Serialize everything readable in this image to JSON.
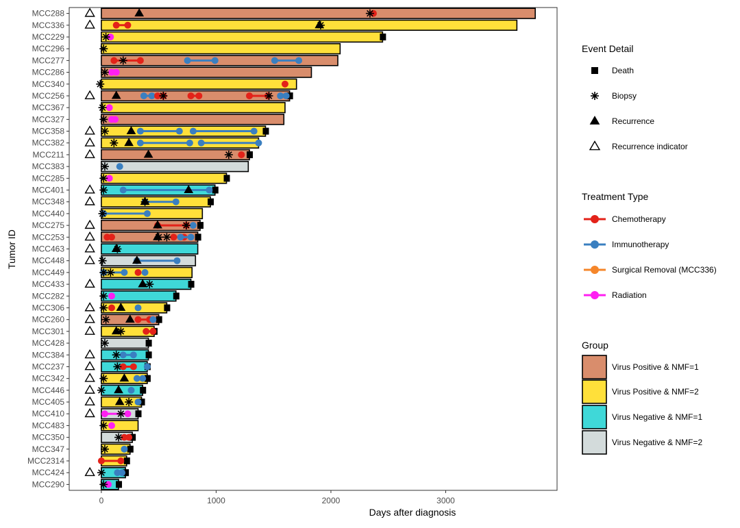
{
  "chart_data": {
    "type": "swimmer",
    "xlabel": "Days after diagnosis",
    "ylabel": "Tumor ID",
    "xlim": [
      -280,
      3970
    ],
    "xticks": [
      0,
      1000,
      2000,
      3000
    ],
    "grid": false,
    "legend_position": "right",
    "legends": {
      "event": {
        "title": "Event Detail",
        "items": [
          {
            "key": "death",
            "label": "Death"
          },
          {
            "key": "biopsy",
            "label": "Biopsy"
          },
          {
            "key": "recurrence",
            "label": "Recurrence"
          },
          {
            "key": "indicator",
            "label": "Recurrence indicator"
          }
        ]
      },
      "treatment": {
        "title": "Treatment Type",
        "items": [
          {
            "key": "chemo",
            "label": "Chemotherapy",
            "color": "#e32219"
          },
          {
            "key": "immuno",
            "label": "Immunotherapy",
            "color": "#3a7fc0"
          },
          {
            "key": "surg",
            "label": "Surgical Removal (MCC336)",
            "color": "#f5862a"
          },
          {
            "key": "rad",
            "label": "Radiation",
            "color": "#ff1ff2"
          }
        ]
      },
      "group": {
        "title": "Group",
        "items": [
          {
            "key": "VP1",
            "label": "Virus Positive & NMF=1",
            "color": "#d98d6c"
          },
          {
            "key": "VP2",
            "label": "Virus Positive & NMF=2",
            "color": "#ffe03a"
          },
          {
            "key": "VN1",
            "label": "Virus Negative & NMF=1",
            "color": "#3fd8d8"
          },
          {
            "key": "VN2",
            "label": "Virus Negative & NMF=2",
            "color": "#d3dbdb"
          }
        ]
      }
    },
    "rows": [
      {
        "id": "MCC288",
        "group": "VP1",
        "end": 3780,
        "death": false,
        "indicator": true,
        "biopsy": [
          2340
        ],
        "recurrence": [
          330
        ],
        "treatments": [
          {
            "type": "chemo",
            "points": [
              2370
            ]
          }
        ]
      },
      {
        "id": "MCC336",
        "group": "VP2",
        "end": 3620,
        "death": false,
        "indicator": true,
        "biopsy": [
          1910
        ],
        "recurrence": [
          1900
        ],
        "treatments": [
          {
            "type": "chemo",
            "points": [
              130,
              230
            ]
          },
          {
            "type": "surg",
            "points": []
          }
        ]
      },
      {
        "id": "MCC229",
        "group": "VP2",
        "end": 2450,
        "death": true,
        "indicator": false,
        "biopsy": [
          40
        ],
        "recurrence": [],
        "treatments": [
          {
            "type": "rad",
            "points": [
              80
            ]
          }
        ]
      },
      {
        "id": "MCC296",
        "group": "VP2",
        "end": 2080,
        "death": false,
        "indicator": false,
        "biopsy": [
          20
        ],
        "recurrence": [],
        "treatments": []
      },
      {
        "id": "MCC277",
        "group": "VP1",
        "end": 2060,
        "death": false,
        "indicator": false,
        "biopsy": [
          190
        ],
        "recurrence": [],
        "treatments": [
          {
            "type": "chemo",
            "points": [
              110,
              340
            ]
          },
          {
            "type": "immuno",
            "points": [
              750,
              990
            ]
          },
          {
            "type": "immuno",
            "points": [
              1510,
              1720
            ]
          }
        ]
      },
      {
        "id": "MCC286",
        "group": "VP1",
        "end": 1830,
        "death": false,
        "indicator": false,
        "biopsy": [
          30
        ],
        "recurrence": [],
        "treatments": [
          {
            "type": "rad",
            "points": [
              90,
              130
            ]
          }
        ]
      },
      {
        "id": "MCC340",
        "group": "VP2",
        "end": 1700,
        "death": false,
        "indicator": false,
        "biopsy": [
          -10
        ],
        "recurrence": [],
        "treatments": [
          {
            "type": "chemo",
            "points": [
              1600
            ]
          }
        ]
      },
      {
        "id": "MCC256",
        "group": "VP1",
        "end": 1640,
        "death": true,
        "indicator": true,
        "biopsy": [
          540,
          1460
        ],
        "recurrence": [
          130
        ],
        "treatments": [
          {
            "type": "immuno",
            "points": [
              370,
              440
            ]
          },
          {
            "type": "chemo",
            "points": [
              490,
              540
            ]
          },
          {
            "type": "chemo",
            "points": [
              780,
              850
            ]
          },
          {
            "type": "chemo",
            "points": [
              1290,
              1450
            ]
          },
          {
            "type": "immuno",
            "points": [
              1560,
              1610
            ]
          }
        ]
      },
      {
        "id": "MCC367",
        "group": "VP2",
        "end": 1600,
        "death": false,
        "indicator": false,
        "biopsy": [
          10
        ],
        "recurrence": [],
        "treatments": [
          {
            "type": "rad",
            "points": [
              70
            ]
          }
        ]
      },
      {
        "id": "MCC327",
        "group": "VP1",
        "end": 1590,
        "death": false,
        "indicator": false,
        "biopsy": [
          20
        ],
        "recurrence": [],
        "treatments": [
          {
            "type": "rad",
            "points": [
              90,
              120
            ]
          }
        ]
      },
      {
        "id": "MCC358",
        "group": "VP2",
        "end": 1430,
        "death": true,
        "indicator": true,
        "biopsy": [
          30
        ],
        "recurrence": [
          260
        ],
        "treatments": [
          {
            "type": "immuno",
            "points": [
              340,
              680
            ]
          },
          {
            "type": "immuno",
            "points": [
              800,
              1330
            ]
          }
        ]
      },
      {
        "id": "MCC382",
        "group": "VP2",
        "end": 1370,
        "death": false,
        "indicator": true,
        "biopsy": [
          110
        ],
        "recurrence": [
          240
        ],
        "treatments": [
          {
            "type": "immuno",
            "points": [
              340,
              770
            ]
          },
          {
            "type": "immuno",
            "points": [
              870,
              1370
            ]
          }
        ]
      },
      {
        "id": "MCC211",
        "group": "VP1",
        "end": 1290,
        "death": true,
        "indicator": true,
        "biopsy": [
          1110
        ],
        "recurrence": [
          410
        ],
        "treatments": [
          {
            "type": "chemo",
            "points": [
              1220
            ]
          }
        ]
      },
      {
        "id": "MCC383",
        "group": "VN2",
        "end": 1280,
        "death": false,
        "indicator": false,
        "biopsy": [
          30
        ],
        "recurrence": [],
        "treatments": [
          {
            "type": "immuno",
            "points": [
              160
            ]
          }
        ]
      },
      {
        "id": "MCC285",
        "group": "VP2",
        "end": 1090,
        "death": true,
        "indicator": false,
        "biopsy": [
          20
        ],
        "recurrence": [],
        "treatments": [
          {
            "type": "rad",
            "points": [
              70
            ]
          }
        ]
      },
      {
        "id": "MCC401",
        "group": "VN1",
        "end": 990,
        "death": true,
        "indicator": true,
        "biopsy": [
          20
        ],
        "recurrence": [
          760
        ],
        "treatments": [
          {
            "type": "immuno",
            "points": [
              190,
              940
            ]
          }
        ]
      },
      {
        "id": "MCC348",
        "group": "VP2",
        "end": 950,
        "death": true,
        "indicator": true,
        "biopsy": [
          380
        ],
        "recurrence": [
          380
        ],
        "treatments": [
          {
            "type": "immuno",
            "points": [
              380,
              650
            ]
          }
        ]
      },
      {
        "id": "MCC440",
        "group": "VP2",
        "end": 880,
        "death": false,
        "indicator": false,
        "biopsy": [
          10
        ],
        "recurrence": [],
        "treatments": [
          {
            "type": "immuno",
            "points": [
              20,
              400
            ]
          }
        ]
      },
      {
        "id": "MCC275",
        "group": "VP1",
        "end": 860,
        "death": true,
        "indicator": true,
        "biopsy": [
          740
        ],
        "recurrence": [
          490
        ],
        "treatments": [
          {
            "type": "chemo",
            "points": [
              490,
              740
            ]
          },
          {
            "type": "immuno",
            "points": [
              800
            ]
          }
        ]
      },
      {
        "id": "MCC253",
        "group": "VP1",
        "end": 840,
        "death": true,
        "indicator": true,
        "biopsy": [
          500,
          570
        ],
        "recurrence": [
          490
        ],
        "treatments": [
          {
            "type": "chemo",
            "points": [
              50,
              90
            ]
          },
          {
            "type": "chemo",
            "points": [
              630,
              720
            ]
          },
          {
            "type": "immuno",
            "points": [
              690,
              780
            ]
          }
        ]
      },
      {
        "id": "MCC463",
        "group": "VN1",
        "end": 840,
        "death": false,
        "indicator": true,
        "biopsy": [
          140
        ],
        "recurrence": [
          130
        ],
        "treatments": []
      },
      {
        "id": "MCC448",
        "group": "VN2",
        "end": 820,
        "death": false,
        "indicator": true,
        "biopsy": [
          10
        ],
        "recurrence": [
          310
        ],
        "treatments": [
          {
            "type": "immuno",
            "points": [
              310,
              660
            ]
          }
        ]
      },
      {
        "id": "MCC449",
        "group": "VP2",
        "end": 790,
        "death": false,
        "indicator": false,
        "biopsy": [
          20,
          80
        ],
        "recurrence": [],
        "treatments": [
          {
            "type": "immuno",
            "points": [
              20,
              200
            ]
          },
          {
            "type": "chemo",
            "points": [
              320
            ]
          },
          {
            "type": "immuno",
            "points": [
              380
            ]
          }
        ]
      },
      {
        "id": "MCC433",
        "group": "VN1",
        "end": 780,
        "death": true,
        "indicator": true,
        "biopsy": [
          420
        ],
        "recurrence": [
          360
        ],
        "treatments": []
      },
      {
        "id": "MCC282",
        "group": "VN1",
        "end": 650,
        "death": true,
        "indicator": false,
        "biopsy": [
          20
        ],
        "recurrence": [],
        "treatments": [
          {
            "type": "rad",
            "points": [
              90
            ]
          }
        ]
      },
      {
        "id": "MCC306",
        "group": "VP2",
        "end": 570,
        "death": true,
        "indicator": true,
        "biopsy": [
          20
        ],
        "recurrence": [
          170
        ],
        "treatments": [
          {
            "type": "chemo",
            "points": [
              90
            ]
          },
          {
            "type": "immuno",
            "points": [
              320
            ]
          }
        ]
      },
      {
        "id": "MCC260",
        "group": "VP1",
        "end": 500,
        "death": true,
        "indicator": true,
        "biopsy": [
          40
        ],
        "recurrence": [
          250
        ],
        "treatments": [
          {
            "type": "chemo",
            "points": [
              320,
              420
            ]
          },
          {
            "type": "immuno",
            "points": [
              450
            ]
          }
        ]
      },
      {
        "id": "MCC301",
        "group": "VP2",
        "end": 460,
        "death": true,
        "indicator": true,
        "biopsy": [
          170
        ],
        "recurrence": [
          130
        ],
        "treatments": [
          {
            "type": "chemo",
            "points": [
              390,
              450
            ]
          }
        ]
      },
      {
        "id": "MCC428",
        "group": "VN2",
        "end": 410,
        "death": true,
        "indicator": false,
        "biopsy": [
          30
        ],
        "recurrence": [],
        "treatments": []
      },
      {
        "id": "MCC384",
        "group": "VN1",
        "end": 410,
        "death": true,
        "indicator": true,
        "biopsy": [
          130
        ],
        "recurrence": [],
        "treatments": [
          {
            "type": "immuno",
            "points": [
              190,
              280
            ]
          }
        ]
      },
      {
        "id": "MCC237",
        "group": "VN1",
        "end": 400,
        "death": true,
        "indicator": true,
        "biopsy": [
          140
        ],
        "recurrence": [],
        "treatments": [
          {
            "type": "chemo",
            "points": [
              190,
              280
            ]
          },
          {
            "type": "immuno",
            "points": [
              400
            ]
          }
        ]
      },
      {
        "id": "MCC342",
        "group": "VP2",
        "end": 400,
        "death": true,
        "indicator": true,
        "biopsy": [
          20
        ],
        "recurrence": [
          200
        ],
        "treatments": [
          {
            "type": "immuno",
            "points": [
              310,
              360
            ]
          }
        ]
      },
      {
        "id": "MCC446",
        "group": "VN1",
        "end": 360,
        "death": true,
        "indicator": true,
        "biopsy": [
          0
        ],
        "recurrence": [
          150
        ],
        "treatments": [
          {
            "type": "immuno",
            "points": [
              260
            ]
          }
        ]
      },
      {
        "id": "MCC405",
        "group": "VP2",
        "end": 350,
        "death": true,
        "indicator": true,
        "biopsy": [
          240
        ],
        "recurrence": [
          160
        ],
        "treatments": [
          {
            "type": "immuno",
            "points": [
              320
            ]
          }
        ]
      },
      {
        "id": "MCC410",
        "group": "VN2",
        "end": 320,
        "death": true,
        "indicator": true,
        "biopsy": [
          170
        ],
        "recurrence": [],
        "treatments": [
          {
            "type": "rad",
            "points": [
              30,
              230
            ]
          }
        ]
      },
      {
        "id": "MCC483",
        "group": "VP2",
        "end": 320,
        "death": false,
        "indicator": false,
        "biopsy": [
          20
        ],
        "recurrence": [],
        "treatments": [
          {
            "type": "rad",
            "points": [
              90
            ]
          }
        ]
      },
      {
        "id": "MCC350",
        "group": "VN2",
        "end": 270,
        "death": true,
        "indicator": false,
        "biopsy": [
          150
        ],
        "recurrence": [],
        "treatments": [
          {
            "type": "chemo",
            "points": [
              200,
              240
            ]
          }
        ]
      },
      {
        "id": "MCC347",
        "group": "VP2",
        "end": 250,
        "death": true,
        "indicator": false,
        "biopsy": [
          30
        ],
        "recurrence": [],
        "treatments": [
          {
            "type": "immuno",
            "points": [
              200
            ]
          }
        ]
      },
      {
        "id": "MCC2314",
        "group": "VP2",
        "end": 220,
        "death": true,
        "indicator": false,
        "biopsy": [],
        "recurrence": [],
        "treatments": [
          {
            "type": "chemo",
            "points": [
              0,
              170
            ]
          }
        ]
      },
      {
        "id": "MCC424",
        "group": "VN1",
        "end": 210,
        "death": true,
        "indicator": true,
        "biopsy": [
          0
        ],
        "recurrence": [],
        "treatments": [
          {
            "type": "immuno",
            "points": [
              140,
              180
            ]
          }
        ]
      },
      {
        "id": "MCC290",
        "group": "VN1",
        "end": 150,
        "death": true,
        "indicator": false,
        "biopsy": [
          20
        ],
        "recurrence": [],
        "treatments": [
          {
            "type": "rad",
            "points": [
              60
            ]
          }
        ]
      }
    ]
  }
}
